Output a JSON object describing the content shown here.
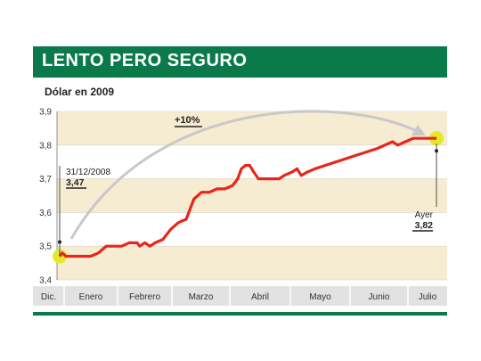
{
  "header": {
    "title": "LENTO PERO SEGURO",
    "subtitle": "Dólar en 2009"
  },
  "colors": {
    "banner": "#0b7a4a",
    "line": "#e8261c",
    "band": "#f6ecd2",
    "highlight": "#e3e82a",
    "arrow": "#c8c8c8",
    "axis_strip": "#e2e2e2"
  },
  "chart_data": {
    "type": "line",
    "title": "Dólar en 2009",
    "xlabel": "",
    "ylabel": "",
    "ylim": [
      3.4,
      3.9
    ],
    "yticks": [
      "3,9",
      "3,8",
      "3,7",
      "3,6",
      "3,5",
      "3,4"
    ],
    "ytick_values": [
      3.9,
      3.8,
      3.7,
      3.6,
      3.5,
      3.4
    ],
    "x_categories": [
      "Dic.",
      "Enero",
      "Febrero",
      "Marzo",
      "Abril",
      "Mayo",
      "Junio",
      "Julio"
    ],
    "grid": "alternating horizontal bands",
    "series": [
      {
        "values": [
          [
            0.0,
            3.47
          ],
          [
            0.05,
            3.48
          ],
          [
            0.12,
            3.47
          ],
          [
            0.6,
            3.47
          ],
          [
            0.75,
            3.48
          ],
          [
            0.9,
            3.5
          ],
          [
            1.2,
            3.5
          ],
          [
            1.35,
            3.51
          ],
          [
            1.5,
            3.51
          ],
          [
            1.55,
            3.5
          ],
          [
            1.65,
            3.51
          ],
          [
            1.75,
            3.5
          ],
          [
            1.85,
            3.51
          ],
          [
            2.0,
            3.52
          ],
          [
            2.15,
            3.55
          ],
          [
            2.3,
            3.57
          ],
          [
            2.45,
            3.58
          ],
          [
            2.6,
            3.64
          ],
          [
            2.75,
            3.66
          ],
          [
            2.9,
            3.66
          ],
          [
            3.05,
            3.67
          ],
          [
            3.2,
            3.67
          ],
          [
            3.35,
            3.68
          ],
          [
            3.45,
            3.7
          ],
          [
            3.52,
            3.73
          ],
          [
            3.6,
            3.74
          ],
          [
            3.68,
            3.74
          ],
          [
            3.76,
            3.72
          ],
          [
            3.85,
            3.7
          ],
          [
            3.95,
            3.7
          ],
          [
            4.1,
            3.7
          ],
          [
            4.25,
            3.7
          ],
          [
            4.35,
            3.71
          ],
          [
            4.5,
            3.72
          ],
          [
            4.6,
            3.73
          ],
          [
            4.68,
            3.71
          ],
          [
            4.8,
            3.72
          ],
          [
            4.95,
            3.73
          ],
          [
            5.15,
            3.74
          ],
          [
            5.35,
            3.75
          ],
          [
            5.55,
            3.76
          ],
          [
            5.75,
            3.77
          ],
          [
            5.95,
            3.78
          ],
          [
            6.15,
            3.79
          ],
          [
            6.3,
            3.8
          ],
          [
            6.45,
            3.81
          ],
          [
            6.55,
            3.8
          ],
          [
            6.7,
            3.81
          ],
          [
            6.85,
            3.82
          ],
          [
            7.0,
            3.82
          ],
          [
            7.15,
            3.82
          ],
          [
            7.3,
            3.82
          ]
        ]
      }
    ],
    "annotations": [
      {
        "label": "31/12/2008",
        "value": "3,47"
      },
      {
        "label": "Ayer",
        "value": "3,82"
      },
      {
        "label": "+10%"
      }
    ]
  }
}
